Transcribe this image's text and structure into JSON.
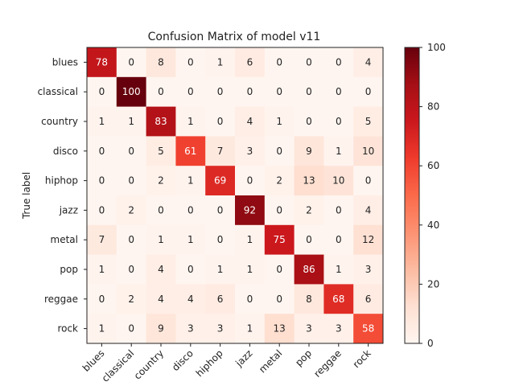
{
  "chart_data": {
    "type": "heatmap",
    "title": "Confusion Matrix of model v11",
    "ylabel": "True label",
    "xlabel": "",
    "x_categories": [
      "blues",
      "classical",
      "country",
      "disco",
      "hiphop",
      "jazz",
      "metal",
      "pop",
      "reggae",
      "rock"
    ],
    "y_categories": [
      "blues",
      "classical",
      "country",
      "disco",
      "hiphop",
      "jazz",
      "metal",
      "pop",
      "reggae",
      "rock"
    ],
    "values": [
      [
        78,
        0,
        8,
        0,
        1,
        6,
        0,
        0,
        0,
        4
      ],
      [
        0,
        100,
        0,
        0,
        0,
        0,
        0,
        0,
        0,
        0
      ],
      [
        1,
        1,
        83,
        1,
        0,
        4,
        1,
        0,
        0,
        5
      ],
      [
        0,
        0,
        5,
        61,
        7,
        3,
        0,
        9,
        1,
        10
      ],
      [
        0,
        0,
        2,
        1,
        69,
        0,
        2,
        13,
        10,
        0
      ],
      [
        0,
        2,
        0,
        0,
        0,
        92,
        0,
        2,
        0,
        4
      ],
      [
        7,
        0,
        1,
        1,
        0,
        1,
        75,
        0,
        0,
        12
      ],
      [
        1,
        0,
        4,
        0,
        1,
        1,
        0,
        86,
        1,
        3
      ],
      [
        0,
        2,
        4,
        4,
        6,
        0,
        0,
        8,
        68,
        6
      ],
      [
        1,
        0,
        9,
        3,
        3,
        1,
        13,
        3,
        3,
        58
      ]
    ],
    "colorbar": {
      "min": 0,
      "max": 100,
      "ticks": [
        0,
        20,
        40,
        60,
        80,
        100
      ]
    },
    "colormap": "Reds"
  }
}
